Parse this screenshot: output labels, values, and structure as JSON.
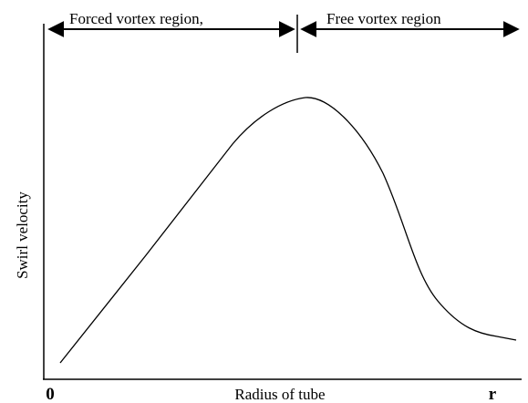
{
  "labels": {
    "forced_region": "Forced vortex region,",
    "free_region": "Free vortex region",
    "y_axis": "Swirl velocity",
    "x_axis": "Radius of tube",
    "origin": "0",
    "x_end": "r"
  }
}
